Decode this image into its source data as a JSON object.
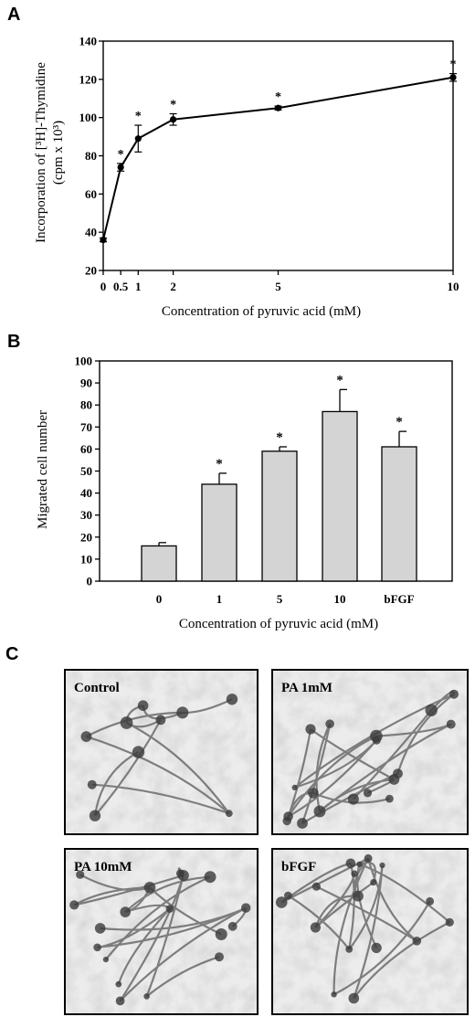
{
  "panels": {
    "a": "A",
    "b": "B",
    "c": "C"
  },
  "chart_data": [
    {
      "type": "line",
      "panel": "A",
      "x": [
        0,
        0.5,
        1,
        2,
        5,
        10
      ],
      "x_tick_labels": [
        "0",
        "0.5",
        "1",
        "2",
        "5",
        "10"
      ],
      "series": [
        {
          "values": [
            36,
            74,
            89,
            99,
            105,
            121
          ],
          "errors": [
            1,
            2,
            7,
            3,
            1,
            2
          ],
          "significant": [
            false,
            true,
            true,
            true,
            true,
            true
          ]
        }
      ],
      "xlabel": "Concentration of pyruvic acid (mM)",
      "ylabel_line1": "Incorporation of [³H]-Thymidine",
      "ylabel_line2": "(cpm x 10³)",
      "ylim": [
        20,
        140
      ],
      "y_ticks": [
        20,
        40,
        60,
        80,
        100,
        120,
        140
      ],
      "significance_marker": "*",
      "grid": false,
      "color": "#000000"
    },
    {
      "type": "bar",
      "panel": "B",
      "categories": [
        "0",
        "1",
        "5",
        "10",
        "bFGF"
      ],
      "values": [
        16,
        44,
        59,
        77,
        61
      ],
      "errors": [
        1.5,
        5,
        2,
        10,
        7
      ],
      "significant": [
        false,
        true,
        true,
        true,
        true
      ],
      "xlabel": "Concentration of pyruvic acid (mM)",
      "ylabel": "Migrated cell number",
      "ylim": [
        0,
        100
      ],
      "y_ticks": [
        0,
        10,
        20,
        30,
        40,
        50,
        60,
        70,
        80,
        90,
        100
      ],
      "significance_marker": "*",
      "grid": false,
      "bar_color": "#d4d4d4"
    }
  ],
  "images": [
    {
      "label": "Control"
    },
    {
      "label": "PA 1mM"
    },
    {
      "label": "PA 10mM"
    },
    {
      "label": "bFGF"
    }
  ]
}
